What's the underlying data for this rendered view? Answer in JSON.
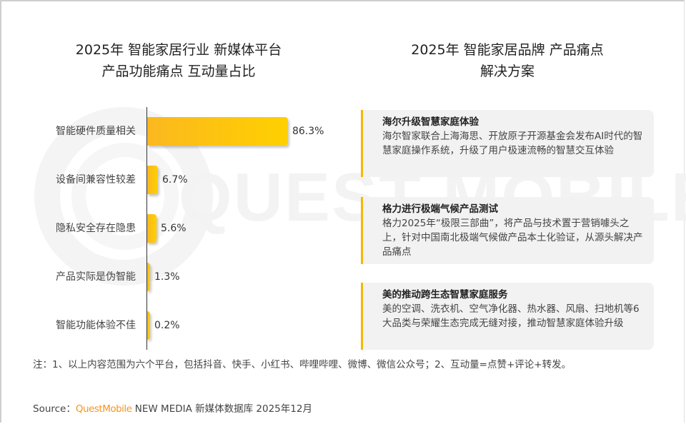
{
  "left_panel": {
    "title_line1": "2025年 智能家居行业 新媒体平台",
    "title_line2": "产品功能痛点 互动量占比"
  },
  "right_panel": {
    "title_line1": "2025年 智能家居品牌 产品痛点",
    "title_line2": "解决方案",
    "cards": [
      {
        "title": "海尔升级智慧家庭体验",
        "body": "海尔智家联合上海海思、开放原子开源基金会发布AI时代的智慧家庭操作系统，升级了用户极速流畅的智慧交互体验"
      },
      {
        "title": "格力进行极端气候产品测试",
        "body": "格力2025年“极限三部曲”，将产品与技术置于营销噱头之上，针对中国南北极端气候做产品本土化验证，从源头解决产品痛点"
      },
      {
        "title": "美的推动跨生态智慧家庭服务",
        "body": "美的空调、洗衣机、空气净化器、热水器、风扇、扫地机等6大品类与荣耀生态完成无缝对接，推动智慧家庭体验升级"
      }
    ]
  },
  "chart_data": {
    "type": "bar",
    "orientation": "horizontal",
    "title": "2025年 智能家居行业 新媒体平台 产品功能痛点 互动量占比",
    "categories": [
      "智能硬件质量相关",
      "设备间兼容性较差",
      "隐私安全存在隐患",
      "产品实际是伪智能",
      "智能功能体验不佳"
    ],
    "values": [
      86.3,
      6.7,
      5.6,
      1.3,
      0.2
    ],
    "value_labels": [
      "86.3%",
      "6.7%",
      "5.6%",
      "1.3%",
      "0.2%"
    ],
    "unit": "%",
    "xlabel": "",
    "ylabel": "",
    "grid": false,
    "legend": null,
    "bar_color": "#FBB81F"
  },
  "footer": {
    "note": "注：1、以上内容范围为六个平台，包括抖音、快手、小红书、哔哩哔哩、微博、微信公众号；2、互动量=点赞+评论+转发。",
    "source_prefix": "Source：",
    "source_brand": "QuestMobile",
    "source_suffix": " NEW MEDIA 新媒体数据库 2025年12月"
  },
  "watermark": "QUEST MOBILE",
  "colors": {
    "accent": "#F5B800",
    "brand": "#F7941D",
    "card_bg": "#F2F2F2"
  }
}
